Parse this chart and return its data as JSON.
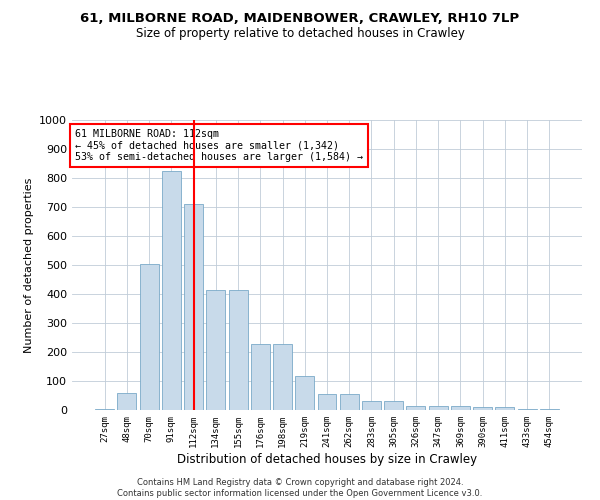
{
  "title_line1": "61, MILBORNE ROAD, MAIDENBOWER, CRAWLEY, RH10 7LP",
  "title_line2": "Size of property relative to detached houses in Crawley",
  "xlabel": "Distribution of detached houses by size in Crawley",
  "ylabel": "Number of detached properties",
  "bar_color": "#c8daea",
  "bar_edge_color": "#7aaac8",
  "marker_color": "red",
  "categories": [
    "27sqm",
    "48sqm",
    "70sqm",
    "91sqm",
    "112sqm",
    "134sqm",
    "155sqm",
    "176sqm",
    "198sqm",
    "219sqm",
    "241sqm",
    "262sqm",
    "283sqm",
    "305sqm",
    "326sqm",
    "347sqm",
    "369sqm",
    "390sqm",
    "411sqm",
    "433sqm",
    "454sqm"
  ],
  "values": [
    5,
    60,
    505,
    825,
    710,
    415,
    415,
    228,
    228,
    118,
    55,
    55,
    30,
    30,
    13,
    13,
    13,
    10,
    10,
    5,
    5
  ],
  "ylim": [
    0,
    1000
  ],
  "yticks": [
    0,
    100,
    200,
    300,
    400,
    500,
    600,
    700,
    800,
    900,
    1000
  ],
  "annotation_text": "61 MILBORNE ROAD: 112sqm\n← 45% of detached houses are smaller (1,342)\n53% of semi-detached houses are larger (1,584) →",
  "footer_line1": "Contains HM Land Registry data © Crown copyright and database right 2024.",
  "footer_line2": "Contains public sector information licensed under the Open Government Licence v3.0.",
  "background_color": "#ffffff",
  "grid_color": "#c0ccd8",
  "marker_category": "112sqm"
}
